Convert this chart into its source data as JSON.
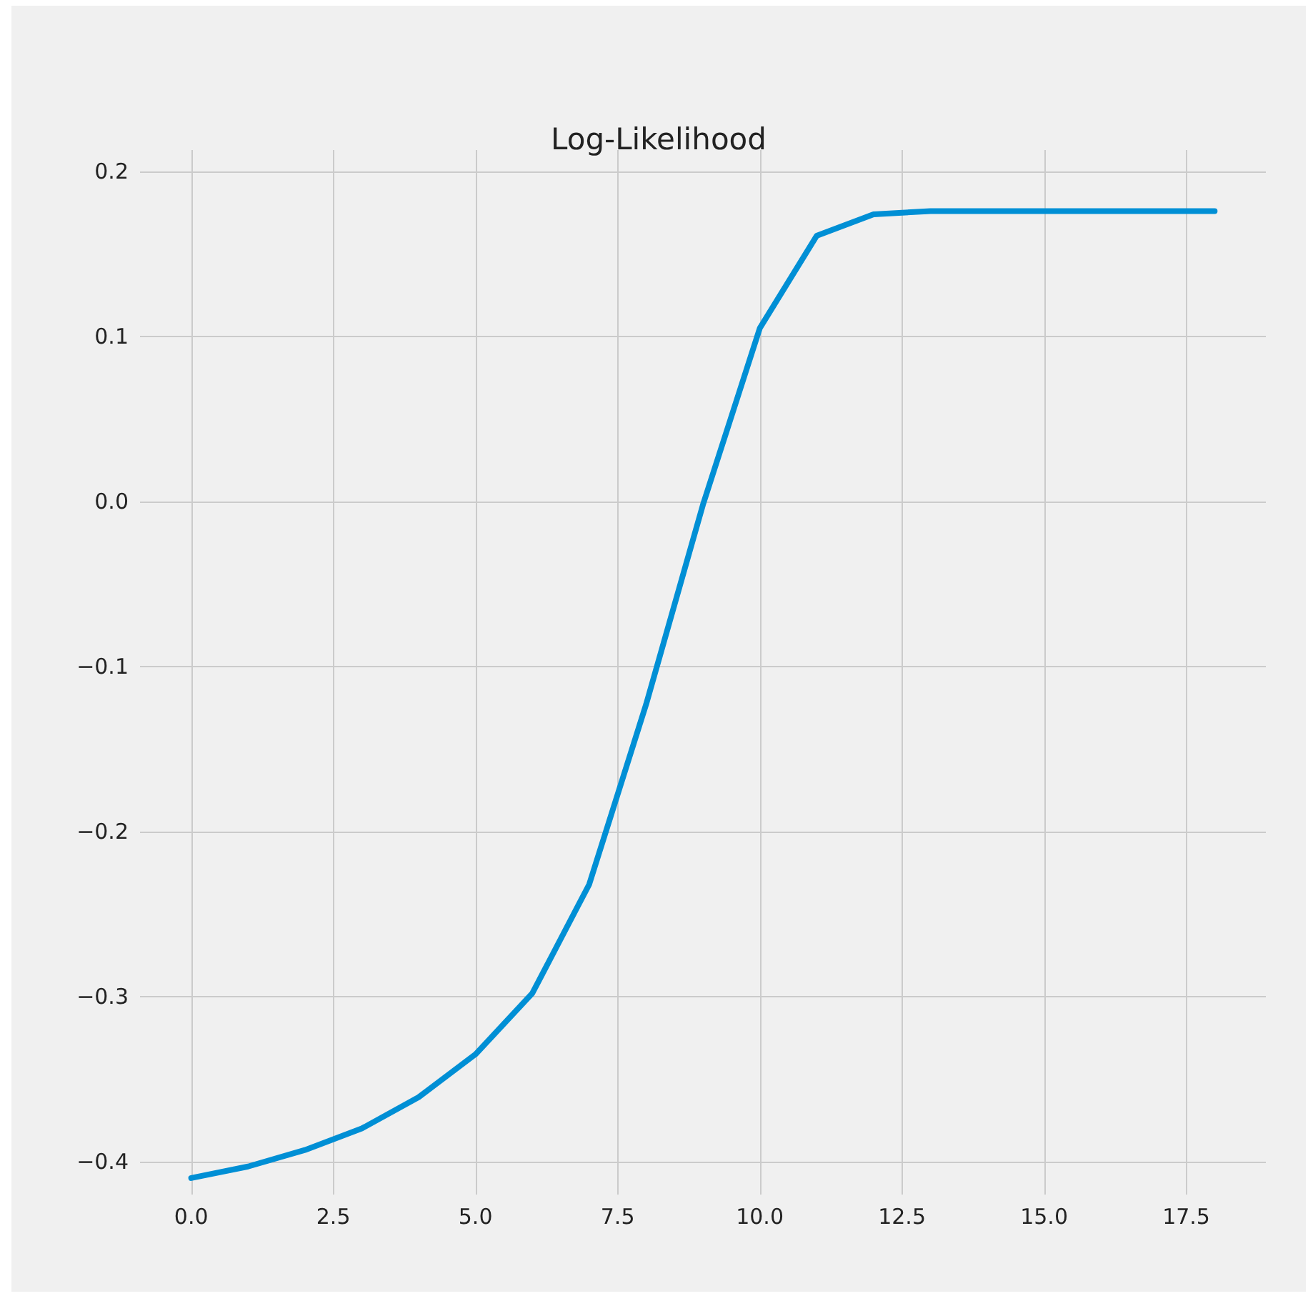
{
  "chart_data": {
    "type": "line",
    "title": "Log-Likelihood",
    "x": [
      0,
      1,
      2,
      3,
      4,
      5,
      6,
      7,
      8,
      9,
      10,
      11,
      12,
      13,
      14,
      15,
      16,
      17,
      18
    ],
    "series": [
      {
        "color": "#008fd5",
        "values": [
          -0.41,
          -0.403,
          -0.393,
          -0.38,
          -0.361,
          -0.335,
          -0.298,
          -0.232,
          -0.123,
          -0.002,
          0.105,
          0.161,
          0.174,
          0.176,
          0.176,
          0.176,
          0.176,
          0.176,
          0.176
        ]
      }
    ],
    "xlim": [
      -0.9,
      18.9
    ],
    "ylim": [
      -0.42,
      0.213
    ],
    "xticks": [
      {
        "value": 0,
        "label": "0.0"
      },
      {
        "value": 2.5,
        "label": "2.5"
      },
      {
        "value": 5,
        "label": "5.0"
      },
      {
        "value": 7.5,
        "label": "7.5"
      },
      {
        "value": 10,
        "label": "10.0"
      },
      {
        "value": 12.5,
        "label": "12.5"
      },
      {
        "value": 15,
        "label": "15.0"
      },
      {
        "value": 17.5,
        "label": "17.5"
      }
    ],
    "yticks": [
      {
        "value": -0.4,
        "label": "−0.4"
      },
      {
        "value": -0.3,
        "label": "−0.3"
      },
      {
        "value": -0.2,
        "label": "−0.2"
      },
      {
        "value": -0.1,
        "label": "−0.1"
      },
      {
        "value": 0,
        "label": "0.0"
      },
      {
        "value": 0.1,
        "label": "0.1"
      },
      {
        "value": 0.2,
        "label": "0.2"
      }
    ],
    "grid": true,
    "marker": "none",
    "line_style": "solid"
  }
}
